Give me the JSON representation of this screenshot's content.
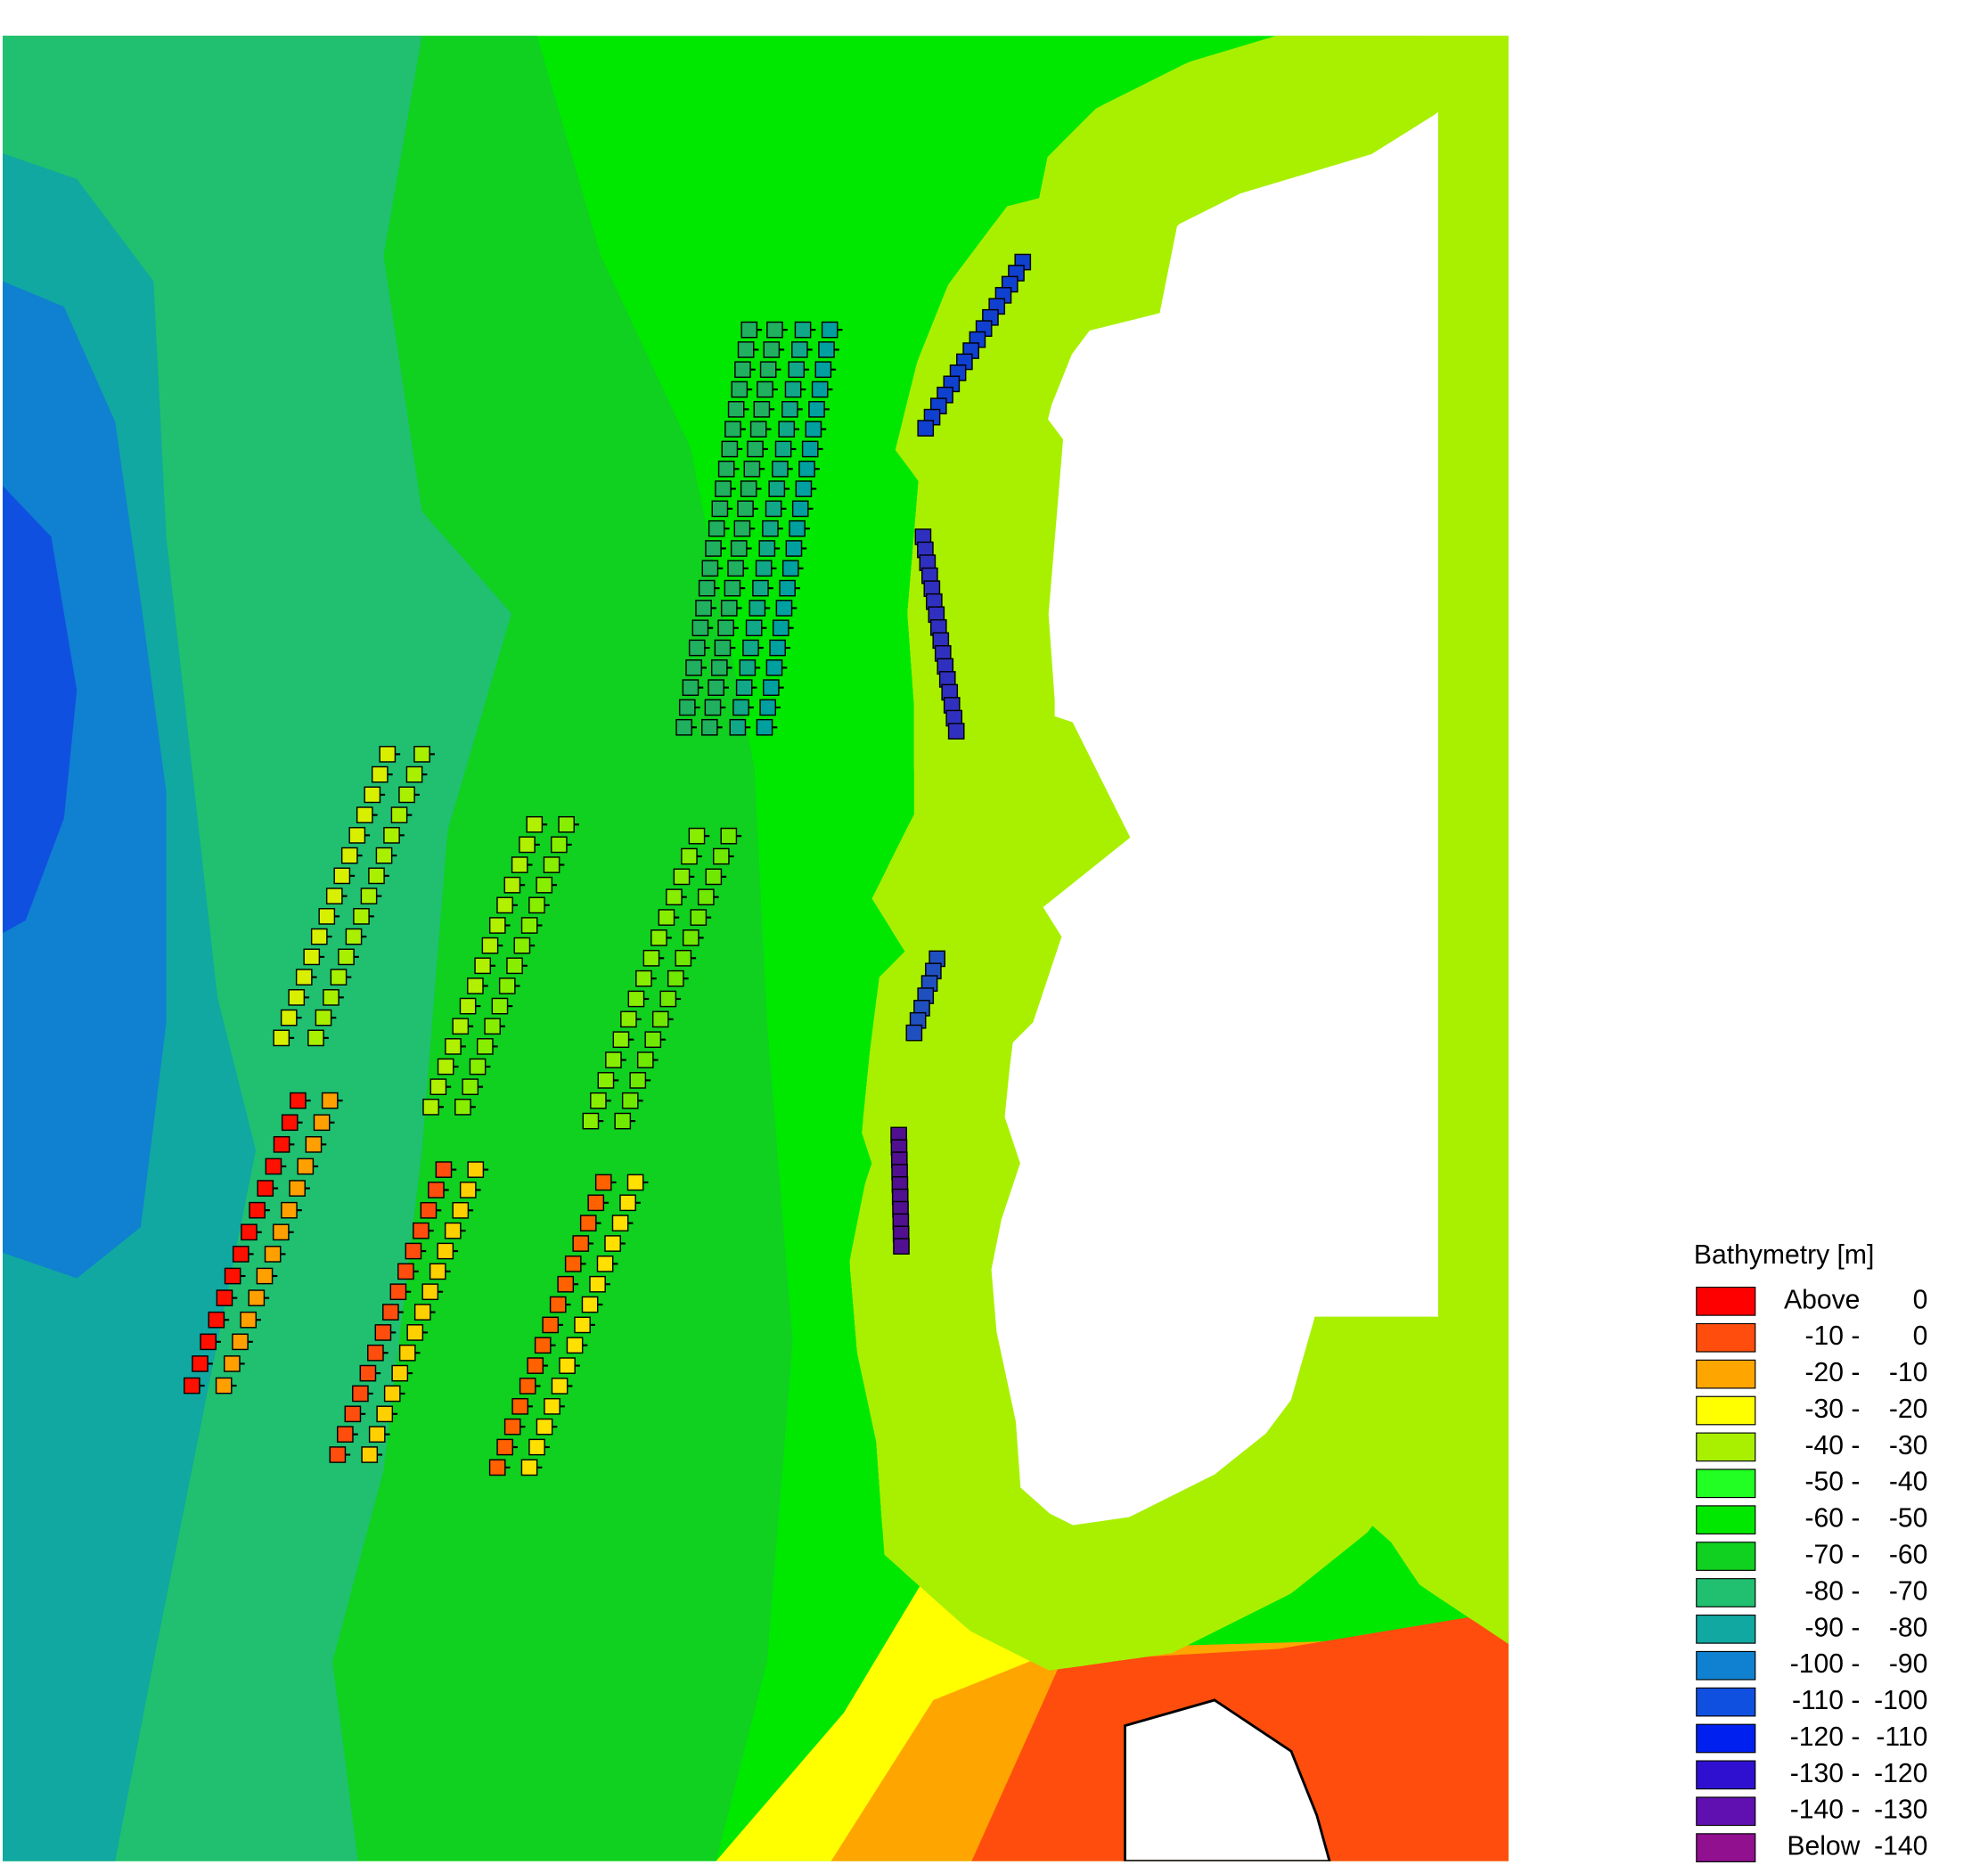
{
  "legend": {
    "title": "Bathymetry [m]",
    "entries": [
      {
        "color": "#ff0000",
        "left": "Above",
        "right": "0"
      },
      {
        "color": "#ff4d0d",
        "left": "-10 -",
        "right": "0"
      },
      {
        "color": "#ffa500",
        "left": "-20 -",
        "right": "-10"
      },
      {
        "color": "#ffff00",
        "left": "-30 -",
        "right": "-20"
      },
      {
        "color": "#a8f000",
        "left": "-40 -",
        "right": "-30"
      },
      {
        "color": "#22ff22",
        "left": "-50 -",
        "right": "-40"
      },
      {
        "color": "#00e800",
        "left": "-60 -",
        "right": "-50"
      },
      {
        "color": "#10d020",
        "left": "-70 -",
        "right": "-60"
      },
      {
        "color": "#20c070",
        "left": "-80 -",
        "right": "-70"
      },
      {
        "color": "#10a8a0",
        "left": "-90 -",
        "right": "-80"
      },
      {
        "color": "#1080d0",
        "left": "-100 -",
        "right": "-90"
      },
      {
        "color": "#1050e0",
        "left": "-110 -",
        "right": "-100"
      },
      {
        "color": "#0020f0",
        "left": "-120 -",
        "right": "-110"
      },
      {
        "color": "#3010d0",
        "left": "-130 -",
        "right": "-120"
      },
      {
        "color": "#6010b0",
        "left": "-140 -",
        "right": "-130"
      },
      {
        "color": "#901090",
        "left": "Below",
        "right": "-140"
      }
    ]
  }
}
